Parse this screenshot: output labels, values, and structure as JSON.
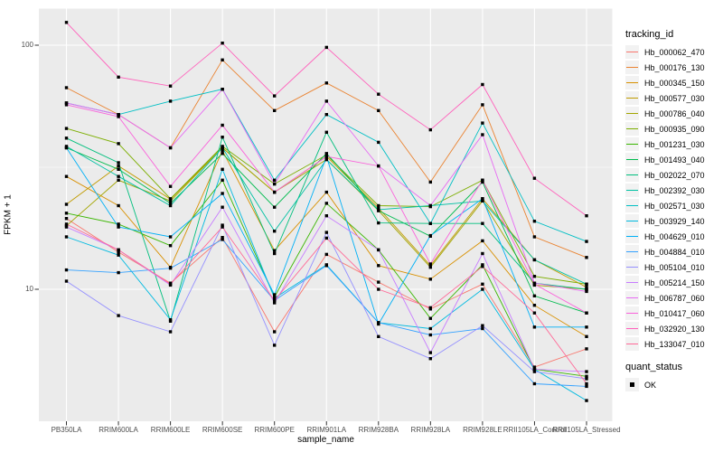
{
  "chart_data": {
    "type": "line",
    "title": "",
    "xlabel": "sample_name",
    "ylabel": "FPKM + 1",
    "y_scale": "log10",
    "ylim": [
      3.2,
      135
    ],
    "y_ticks": [
      {
        "label": "100",
        "value": 100
      },
      {
        "label": "10",
        "value": 10
      }
    ],
    "y_minor_gridlines": [
      31.62
    ],
    "grid": true,
    "panel_bg": "#EBEBEB",
    "grid_color": "#FFFFFF",
    "tick_color": "#333333",
    "axis_text_color": "#4D4D4D",
    "marker_color": "#000000",
    "legend_position": "right",
    "legend_title": "tracking_id",
    "categories": [
      "PB350LA",
      "RRIM600LA",
      "RRIM600LE",
      "RRIM600SE",
      "RRIM600PE",
      "RRIM901LA",
      "RRIM928BA",
      "RRIM928LA",
      "RRIM928LE",
      "RRII105LA_Control",
      "RRII105LA_Stressed"
    ],
    "series": [
      {
        "name": "Hb_000062_470",
        "color": "#F8766D",
        "values": [
          19.5,
          14.2,
          10.6,
          16.3,
          6.7,
          13.9,
          10.7,
          8.3,
          10.5,
          4.8,
          5.7
        ]
      },
      {
        "name": "Hb_000176_130",
        "color": "#EA8331",
        "values": [
          67,
          52,
          38,
          87,
          54,
          70,
          54,
          27.5,
          57,
          16.4,
          13.5
        ]
      },
      {
        "name": "Hb_000345_150",
        "color": "#D89000",
        "values": [
          29,
          22,
          12.3,
          37,
          14.4,
          25,
          12.5,
          11,
          15.8,
          8.6,
          6.4
        ]
      },
      {
        "name": "Hb_000577_030",
        "color": "#C09B00",
        "values": [
          22.3,
          32,
          23.4,
          38,
          25,
          35,
          21.5,
          12.5,
          23.5,
          13.2,
          10.2
        ]
      },
      {
        "name": "Hb_000786_040",
        "color": "#A3A500",
        "values": [
          18.2,
          28,
          23,
          38,
          25,
          34,
          21,
          12.3,
          23,
          10.4,
          10
        ]
      },
      {
        "name": "Hb_000935_090",
        "color": "#7CAE00",
        "values": [
          45.6,
          39.5,
          23.5,
          38.5,
          27,
          35.5,
          22,
          21.8,
          28,
          11.3,
          10.5
        ]
      },
      {
        "name": "Hb_001231_030",
        "color": "#39B600",
        "values": [
          20.5,
          18.5,
          15.1,
          28,
          9.3,
          22.5,
          14.5,
          7.6,
          12.6,
          4.7,
          4.4
        ]
      },
      {
        "name": "Hb_001493_040",
        "color": "#00BB4E",
        "values": [
          38,
          31,
          22.5,
          36,
          21.7,
          36,
          21,
          16.5,
          27.5,
          9.4,
          8
        ]
      },
      {
        "name": "Hb_002022_070",
        "color": "#00BF7D",
        "values": [
          41.6,
          33,
          7.4,
          42,
          14,
          44,
          18.7,
          18.6,
          18.6,
          10.6,
          10
        ]
      },
      {
        "name": "Hb_002392_030",
        "color": "#00C1A3",
        "values": [
          38.5,
          29,
          22,
          38,
          17.3,
          34,
          21.2,
          22,
          23,
          13.2,
          10.5
        ]
      },
      {
        "name": "Hb_002571_030",
        "color": "#00BFC4",
        "values": [
          58,
          52,
          59,
          66,
          28,
          52,
          40,
          18.6,
          48,
          19,
          15.7
        ]
      },
      {
        "name": "Hb_003929_140",
        "color": "#00BAE0",
        "values": [
          16.4,
          13.8,
          7.5,
          31,
          9.2,
          12.6,
          7.3,
          6.9,
          10,
          4.7,
          3.5
        ]
      },
      {
        "name": "Hb_004629_010",
        "color": "#00B0F6",
        "values": [
          38,
          18,
          16.4,
          24.7,
          9.5,
          35,
          7.2,
          16.6,
          23.5,
          7,
          7
        ]
      },
      {
        "name": "Hb_004884_010",
        "color": "#35A2FF",
        "values": [
          12,
          11.7,
          12.2,
          16,
          9,
          12.5,
          7.3,
          6.5,
          6.9,
          4.1,
          4
        ]
      },
      {
        "name": "Hb_005104_010",
        "color": "#9590FF",
        "values": [
          10.8,
          7.8,
          6.7,
          18.3,
          5.9,
          17.1,
          6.4,
          5.2,
          7.1,
          4.6,
          4.3
        ]
      },
      {
        "name": "Hb_005214_150",
        "color": "#C77CFF",
        "values": [
          18,
          14.5,
          10.4,
          21.7,
          8.8,
          20,
          14.5,
          5.5,
          14,
          4.7,
          4.6
        ]
      },
      {
        "name": "Hb_006787_060",
        "color": "#E76BF3",
        "values": [
          58,
          52,
          38,
          66,
          27,
          59,
          32,
          22,
          43,
          10.6,
          9.8
        ]
      },
      {
        "name": "Hb_010417_060",
        "color": "#FA62DB",
        "values": [
          57,
          51,
          26.4,
          47,
          25,
          35,
          32,
          12.7,
          28,
          10.5,
          8
        ]
      },
      {
        "name": "Hb_032920_130",
        "color": "#FF62BC",
        "values": [
          124,
          74,
          68,
          102,
          62,
          98,
          63,
          45,
          69,
          28.5,
          20
        ]
      },
      {
        "name": "Hb_133047_010",
        "color": "#FF6A98",
        "values": [
          18.5,
          14.5,
          10.5,
          18,
          9,
          16.2,
          10,
          8.4,
          12.4,
          8,
          4.1
        ]
      }
    ],
    "quant_legend": {
      "title": "quant_status",
      "items": [
        {
          "label": "OK",
          "marker": "black-square"
        }
      ]
    }
  }
}
